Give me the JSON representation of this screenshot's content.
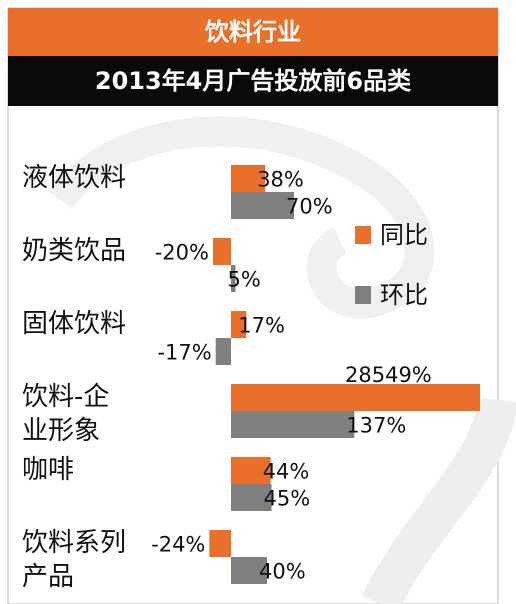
{
  "chart_data": {
    "type": "bar",
    "orientation": "horizontal",
    "title": "饮料行业",
    "subtitle": "2013年4月广告投放前6品类",
    "categories": [
      "液体饮料",
      "奶类饮品",
      "固体饮料",
      "饮料-企业形象",
      "咖啡",
      "饮料系列产品"
    ],
    "series": [
      {
        "name": "同比",
        "color": "#e8702a",
        "values": [
          38,
          -20,
          17,
          28549,
          44,
          -24
        ],
        "value_labels": [
          "38%",
          "-20%",
          "17%",
          "28549%",
          "44%",
          "-24%"
        ]
      },
      {
        "name": "环比",
        "color": "#7f7f7f",
        "values": [
          70,
          5,
          -17,
          137,
          45,
          40
        ],
        "value_labels": [
          "70%",
          "5%",
          "-17%",
          "137%",
          "45%",
          "40%"
        ]
      }
    ],
    "legend": "right"
  }
}
